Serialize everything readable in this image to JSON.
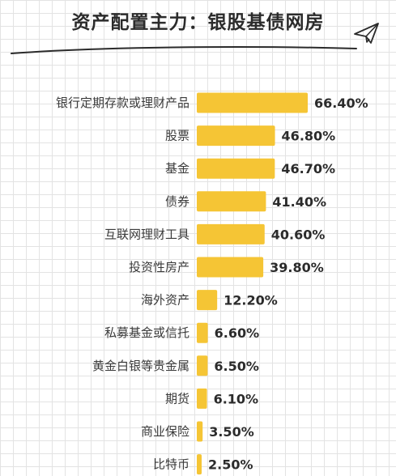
{
  "chart_data": {
    "type": "bar",
    "orientation": "horizontal",
    "title": "资产配置主力：银股基债网房",
    "categories": [
      "银行定期存款或理财产品",
      "股票",
      "基金",
      "债券",
      "互联网理财工具",
      "投资性房产",
      "海外资产",
      "私募基金或信托",
      "黄金白银等贵金属",
      "期货",
      "商业保险",
      "比特币"
    ],
    "values": [
      66.4,
      46.8,
      46.7,
      41.4,
      40.6,
      39.8,
      12.2,
      6.6,
      6.5,
      6.1,
      3.5,
      2.5
    ],
    "value_labels": [
      "66.40%",
      "46.80%",
      "46.70%",
      "41.40%",
      "40.60%",
      "39.80%",
      "12.20%",
      "6.60%",
      "6.50%",
      "6.10%",
      "3.50%",
      "2.50%"
    ],
    "unit": "%",
    "grid": false,
    "legend": "none"
  },
  "colors": {
    "bar": "#f5c535",
    "title": "#2b2b2b",
    "text": "#3a3a3a"
  },
  "icons": {
    "decoration": "paper-plane-icon"
  }
}
